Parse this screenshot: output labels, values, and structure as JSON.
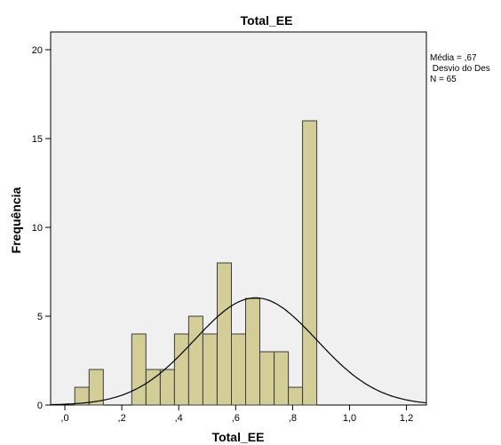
{
  "chart_data": {
    "type": "bar",
    "title": "Total_EE",
    "xlabel": "Total_EE",
    "ylabel": "Frequência",
    "xlim": [
      -0.05,
      1.27
    ],
    "ylim": [
      0,
      21
    ],
    "x_ticks": [
      0,
      0.2,
      0.4,
      0.6,
      0.8,
      1.0,
      1.2
    ],
    "x_tick_labels": [
      ",0",
      ",2",
      ",4",
      ",6",
      ",8",
      "1,0",
      "1,2"
    ],
    "y_ticks": [
      0,
      5,
      10,
      15,
      20
    ],
    "y_tick_labels": [
      "0",
      "5",
      "10",
      "15",
      "20"
    ],
    "bin_width": 0.05,
    "bins": [
      {
        "center": 0.06,
        "value": 1
      },
      {
        "center": 0.11,
        "value": 2
      },
      {
        "center": 0.26,
        "value": 4
      },
      {
        "center": 0.31,
        "value": 2
      },
      {
        "center": 0.36,
        "value": 2
      },
      {
        "center": 0.41,
        "value": 4
      },
      {
        "center": 0.46,
        "value": 5
      },
      {
        "center": 0.51,
        "value": 4
      },
      {
        "center": 0.56,
        "value": 8
      },
      {
        "center": 0.61,
        "value": 4
      },
      {
        "center": 0.66,
        "value": 6
      },
      {
        "center": 0.71,
        "value": 3
      },
      {
        "center": 0.76,
        "value": 3
      },
      {
        "center": 0.81,
        "value": 1
      },
      {
        "center": 0.86,
        "value": 16
      }
    ],
    "normal_curve": {
      "mean": 0.67,
      "sd": 0.2149,
      "n": 65,
      "bin_width": 0.05
    },
    "stats": [
      "Média = ,67",
      " Desvio do Des",
      "N = 65"
    ],
    "grid": false,
    "colors": {
      "plot_background": "#f0f0f0",
      "bar_fill": "#d3ce97",
      "bar_stroke": "#3c3c3c",
      "curve": "#000000"
    }
  }
}
